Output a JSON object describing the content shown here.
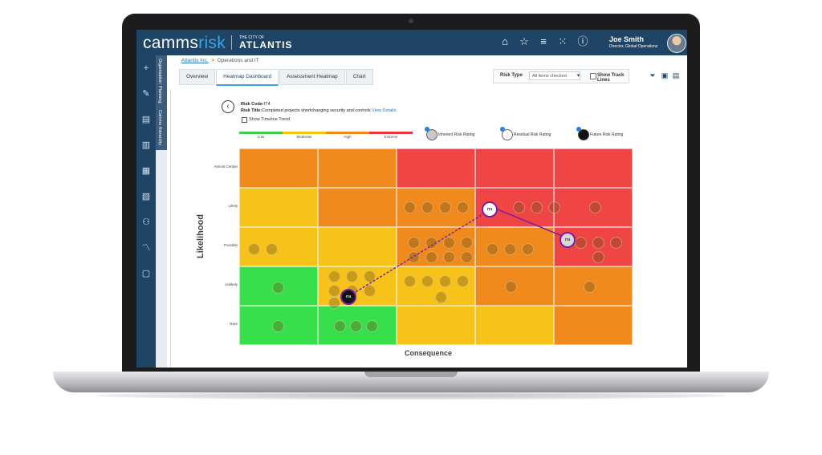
{
  "app": {
    "brand_prefix": "camms",
    "brand_suffix": "risk",
    "city_small": "THE CITY OF",
    "city_name": "ATLANTIS"
  },
  "header": {
    "icons": [
      "home-icon",
      "star-icon",
      "menu-icon",
      "grid-icon",
      "help-icon"
    ],
    "user": {
      "name": "Joe Smith",
      "role": "Director, Global Operations"
    }
  },
  "leftnav": {
    "icons": [
      "add-icon",
      "edit-icon",
      "document-edit-icon",
      "document-search-icon",
      "report-icon",
      "list-icon",
      "users-icon",
      "trend-icon",
      "file-icon"
    ]
  },
  "vertical_tabs": [
    "Organisation",
    "Planning",
    "Camms Hierarchy"
  ],
  "breadcrumb": {
    "link": "Atlantis Inc.",
    "separator": ">",
    "current": "Operations and IT"
  },
  "tabs": [
    {
      "label": "Overview",
      "active": false
    },
    {
      "label": "Heatmap Dashboard",
      "active": true
    },
    {
      "label": "Assessment Heatmap",
      "active": false
    },
    {
      "label": "Chart",
      "active": false
    }
  ],
  "toolbar": {
    "risk_type_label": "Risk Type",
    "risk_type_value": "All items checked",
    "show_track_lines": "Show Track Lines"
  },
  "risk": {
    "code_label": "Risk Code:",
    "code": "IT4",
    "title_label": "Risk Title:",
    "title": "Completed projects shortchanging security and controls",
    "view_details": "View Details",
    "show_timeline_trend": "Show Timeline Trend"
  },
  "legend": {
    "scale": [
      {
        "label": "Low",
        "color": "#3ecf4a"
      },
      {
        "label": "Moderate",
        "color": "#f2c40f"
      },
      {
        "label": "High",
        "color": "#f08a1c"
      },
      {
        "label": "Extreme",
        "color": "#e8333b"
      }
    ],
    "ratings": [
      "Inherent Risk Rating",
      "Residual Risk Rating",
      "Future Risk Rating"
    ]
  },
  "heatmap": {
    "x_label": "Consequence",
    "y_label": "Likelihood",
    "rows": [
      "Almost Certain",
      "Likely",
      "Possible",
      "Unlikely",
      "Rare"
    ],
    "colors": [
      [
        "#f08a1c",
        "#f08a1c",
        "#ef4545",
        "#ef4545",
        "#ef4545"
      ],
      [
        "#f7c21a",
        "#f08a1c",
        "#f08a1c",
        "#ef4545",
        "#ef4545"
      ],
      [
        "#f7c21a",
        "#f7c21a",
        "#f08a1c",
        "#f08a1c",
        "#ef4545"
      ],
      [
        "#37e04a",
        "#f7c21a",
        "#f7c21a",
        "#f08a1c",
        "#f08a1c"
      ],
      [
        "#37e04a",
        "#37e04a",
        "#f7c21a",
        "#f7c21a",
        "#f08a1c"
      ]
    ],
    "tracked": {
      "inherent": "IT4",
      "residual": "IT4",
      "future": "IT4"
    }
  }
}
